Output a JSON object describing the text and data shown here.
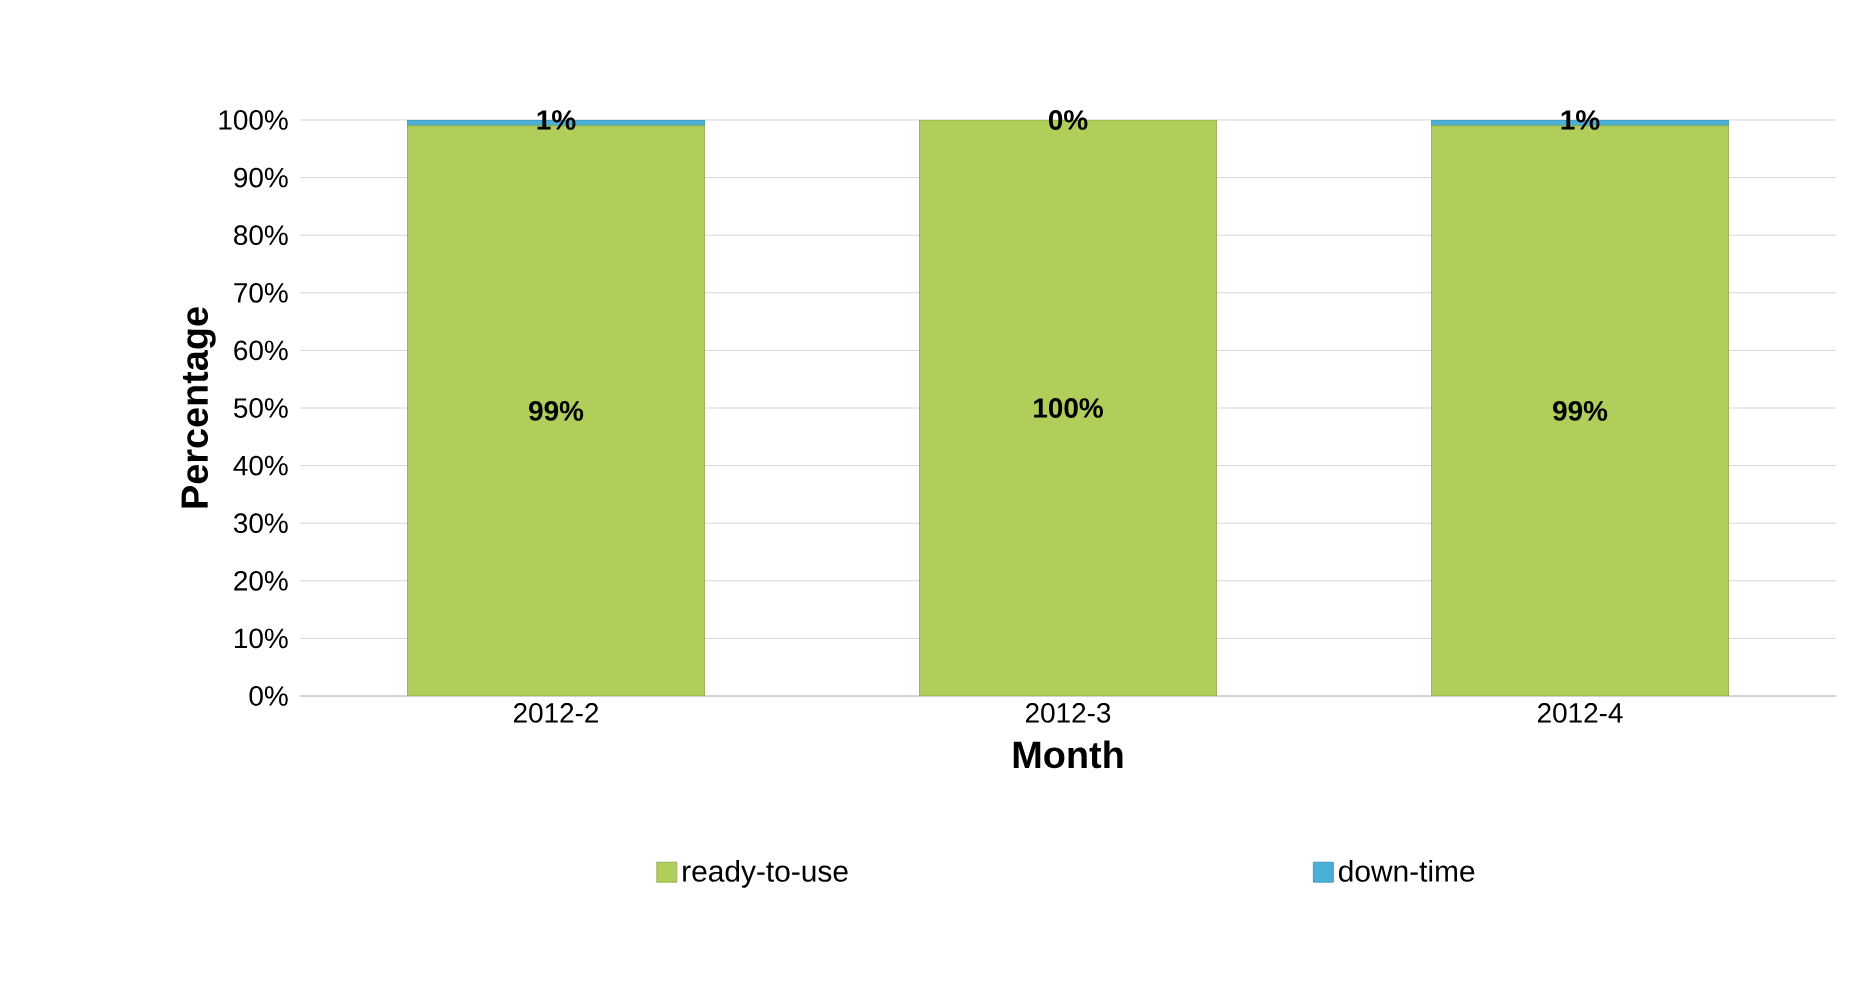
{
  "chart_data": {
    "type": "bar",
    "stacked": true,
    "xlabel": "Month",
    "ylabel": "Percentage",
    "categories": [
      "2012-2",
      "2012-3",
      "2012-4"
    ],
    "series": [
      {
        "name": "ready-to-use",
        "color": "#b0cf5a",
        "values": [
          99,
          100,
          99
        ],
        "value_labels": [
          "99%",
          "100%",
          "99%"
        ]
      },
      {
        "name": "down-time",
        "color": "#4bb0d6",
        "values": [
          1,
          0,
          1
        ],
        "value_labels": [
          "1%",
          "0%",
          "1%"
        ]
      }
    ],
    "ylim": [
      0,
      100
    ],
    "yticks": [
      {
        "value": 0,
        "label": "0%"
      },
      {
        "value": 10,
        "label": "10%"
      },
      {
        "value": 20,
        "label": "20%"
      },
      {
        "value": 30,
        "label": "30%"
      },
      {
        "value": 40,
        "label": "40%"
      },
      {
        "value": 50,
        "label": "50%"
      },
      {
        "value": 60,
        "label": "60%"
      },
      {
        "value": 70,
        "label": "70%"
      },
      {
        "value": 80,
        "label": "80%"
      },
      {
        "value": 90,
        "label": "90%"
      },
      {
        "value": 100,
        "label": "100%"
      }
    ],
    "grid": "y",
    "legend": "bottom"
  }
}
